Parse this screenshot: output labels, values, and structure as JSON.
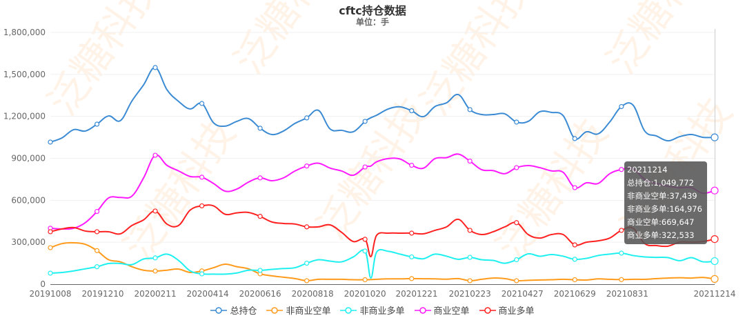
{
  "watermark": "泛糖科技",
  "chart_data": {
    "type": "line",
    "title": "cftc持仓数据",
    "subtitle": "单位：手",
    "ylim": [
      0,
      1800000
    ],
    "yticks": [
      "0",
      "300,000",
      "600,000",
      "900,000",
      "1,200,000",
      "1,500,000",
      "1,800,000"
    ],
    "ytick_values": [
      0,
      300000,
      600000,
      900000,
      1200000,
      1500000,
      1800000
    ],
    "xticks": [
      "20191008",
      "20191210",
      "20200211",
      "20200414",
      "20200616",
      "20200818",
      "20201020",
      "20201221",
      "20210223",
      "20210427",
      "20210629",
      "20210831",
      "20211214"
    ],
    "grid": true,
    "legend_position": "bottom",
    "x": [
      "20191008",
      "20191022",
      "20191105",
      "20191119",
      "20191203",
      "20191217",
      "20191231",
      "20200114",
      "20200128",
      "20200211",
      "20200225",
      "20200310",
      "20200324",
      "20200407",
      "20200421",
      "20200505",
      "20200519",
      "20200602",
      "20200616",
      "20200630",
      "20200714",
      "20200728",
      "20200811",
      "20200825",
      "20200908",
      "20200922",
      "20201006",
      "20201020",
      "20201027",
      "20201103",
      "20201117",
      "20201201",
      "20201215",
      "20201229",
      "20210112",
      "20210126",
      "20210209",
      "20210223",
      "20210309",
      "20210323",
      "20210406",
      "20210420",
      "20210504",
      "20210518",
      "20210601",
      "20210615",
      "20210629",
      "20210713",
      "20210727",
      "20210810",
      "20210824",
      "20210907",
      "20210921",
      "20211005",
      "20211019",
      "20211102",
      "20211116",
      "20211130",
      "20211214"
    ],
    "series": [
      {
        "name": "总持仓",
        "color": "#3a8ad4",
        "values": [
          1016000,
          1046000,
          1105000,
          1095000,
          1144000,
          1203000,
          1169000,
          1310000,
          1425000,
          1549000,
          1391000,
          1307000,
          1253000,
          1292000,
          1154000,
          1130000,
          1164000,
          1184000,
          1115000,
          1070000,
          1095000,
          1150000,
          1189000,
          1243000,
          1110000,
          1100000,
          1090000,
          1164000,
          1190000,
          1208000,
          1253000,
          1268000,
          1240000,
          1198000,
          1270000,
          1297000,
          1356000,
          1248000,
          1213000,
          1213000,
          1218000,
          1159000,
          1164000,
          1233000,
          1228000,
          1205000,
          1041000,
          1090000,
          1075000,
          1160000,
          1270000,
          1280000,
          1095000,
          1060000,
          1025000,
          1055000,
          1070000,
          1050000,
          1049772
        ]
      },
      {
        "name": "非商业空单",
        "color": "#ff9a1a",
        "values": [
          261000,
          290000,
          296000,
          285000,
          240000,
          175000,
          160000,
          125000,
          100000,
          94000,
          100000,
          108000,
          84000,
          95000,
          118000,
          143000,
          125000,
          110000,
          74000,
          60000,
          50000,
          40000,
          25000,
          35000,
          35000,
          35000,
          32000,
          32000,
          33000,
          35000,
          38000,
          38000,
          40000,
          39000,
          38000,
          36000,
          40000,
          25000,
          35000,
          44000,
          40000,
          25000,
          28000,
          30000,
          32000,
          35000,
          32000,
          30000,
          38000,
          35000,
          33000,
          35000,
          35000,
          40000,
          44000,
          46000,
          44000,
          48000,
          37439
        ]
      },
      {
        "name": "非商业多单",
        "color": "#1ef0f0",
        "values": [
          79000,
          84000,
          95000,
          110000,
          125000,
          148000,
          148000,
          140000,
          180000,
          188000,
          215000,
          170000,
          95000,
          74000,
          72000,
          72000,
          80000,
          100000,
          99000,
          106000,
          112000,
          118000,
          150000,
          175000,
          165000,
          160000,
          195000,
          237000,
          44000,
          230000,
          235000,
          215000,
          195000,
          182000,
          215000,
          200000,
          178000,
          192000,
          175000,
          170000,
          150000,
          175000,
          217000,
          200000,
          212000,
          200000,
          178000,
          185000,
          205000,
          215000,
          222000,
          205000,
          195000,
          192000,
          190000,
          168000,
          190000,
          160000,
          164976
        ]
      },
      {
        "name": "商业空单",
        "color": "#ff1aff",
        "values": [
          400000,
          395000,
          400000,
          440000,
          520000,
          617000,
          620000,
          630000,
          760000,
          922000,
          850000,
          810000,
          770000,
          765000,
          720000,
          665000,
          680000,
          730000,
          760000,
          740000,
          760000,
          810000,
          845000,
          865000,
          830000,
          809000,
          779000,
          838000,
          845000,
          875000,
          898000,
          895000,
          850000,
          829000,
          898000,
          905000,
          930000,
          880000,
          819000,
          812000,
          790000,
          833000,
          848000,
          833000,
          810000,
          800000,
          690000,
          725000,
          720000,
          790000,
          820000,
          825000,
          750000,
          720000,
          700000,
          690000,
          690000,
          650000,
          669647
        ]
      },
      {
        "name": "商业多单",
        "color": "#ff2020",
        "values": [
          375000,
          395000,
          405000,
          380000,
          375000,
          375000,
          360000,
          420000,
          460000,
          523000,
          430000,
          420000,
          530000,
          560000,
          560000,
          500000,
          510000,
          513000,
          485000,
          445000,
          434000,
          430000,
          410000,
          410000,
          424000,
          370000,
          305000,
          321000,
          197000,
          350000,
          365000,
          365000,
          365000,
          360000,
          385000,
          410000,
          464000,
          385000,
          355000,
          375000,
          410000,
          440000,
          355000,
          330000,
          355000,
          355000,
          281000,
          300000,
          310000,
          330000,
          385000,
          400000,
          290000,
          276000,
          272000,
          301000,
          300000,
          305000,
          322533
        ]
      }
    ]
  },
  "tooltip": {
    "date": "20211214",
    "rows": [
      "总持仓:1,049,772",
      "非商业空单:37,439",
      "非商业多单:164,976",
      "商业空单:669,647",
      "商业多单:322,533"
    ]
  }
}
